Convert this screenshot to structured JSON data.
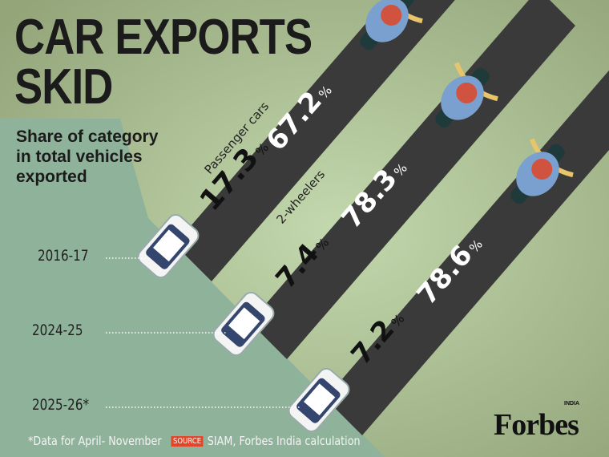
{
  "title_lines": [
    "CAR EXPORTS",
    "SKID"
  ],
  "subtitle": "Share of category in total vehicles exported",
  "footnote": "*Data for April- November",
  "source_tag": "SOURCE",
  "source_text": "SIAM, Forbes India calculation",
  "logo": {
    "text": "Forbes",
    "sub": "INDIA"
  },
  "colors": {
    "background": "#a9bd8f",
    "cliff": "#8fb29a",
    "road": "#3a3a3a",
    "source_tag": "#e2462a"
  },
  "labels": {
    "passenger": "Passenger cars",
    "two_wheelers": "2-wheelers",
    "pct": "%"
  },
  "chart_data": {
    "type": "bar",
    "title": "CAR EXPORTS SKID",
    "subtitle": "Share of category in total vehicles exported",
    "unit": "%",
    "categories": [
      "2016-17",
      "2024-25",
      "2025-26*"
    ],
    "series": [
      {
        "name": "Passenger cars",
        "values": [
          17.3,
          7.4,
          7.2
        ]
      },
      {
        "name": "2-wheelers",
        "values": [
          67.2,
          78.3,
          78.6
        ]
      }
    ]
  }
}
